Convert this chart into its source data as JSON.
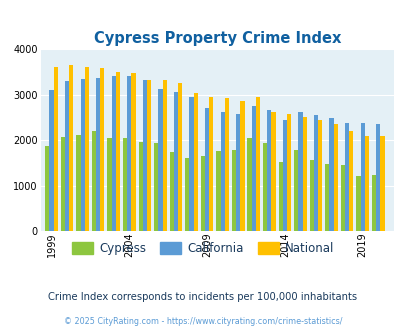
{
  "title": "Cypress Property Crime Index",
  "title_color": "#1060a0",
  "years": [
    1999,
    2000,
    2001,
    2002,
    2003,
    2004,
    2005,
    2006,
    2007,
    2008,
    2009,
    2010,
    2011,
    2012,
    2013,
    2014,
    2015,
    2016,
    2017,
    2018,
    2019,
    2020
  ],
  "cypress": [
    1880,
    2070,
    2120,
    2210,
    2050,
    2060,
    1970,
    1940,
    1750,
    1600,
    1660,
    1760,
    1790,
    2060,
    1940,
    1510,
    1790,
    1570,
    1480,
    1460,
    1220,
    1240
  ],
  "california": [
    3100,
    3300,
    3350,
    3380,
    3420,
    3420,
    3320,
    3130,
    3060,
    2950,
    2720,
    2630,
    2580,
    2760,
    2660,
    2450,
    2620,
    2550,
    2500,
    2390,
    2370,
    2360
  ],
  "national": [
    3610,
    3660,
    3610,
    3590,
    3510,
    3490,
    3330,
    3330,
    3260,
    3050,
    2960,
    2940,
    2870,
    2950,
    2620,
    2570,
    2510,
    2450,
    2360,
    2210,
    2090,
    2090
  ],
  "cypress_color": "#8dc63f",
  "california_color": "#5b9bd5",
  "national_color": "#ffc000",
  "bg_color": "#e4f0f6",
  "ylim": [
    0,
    4000
  ],
  "yticks": [
    0,
    1000,
    2000,
    3000,
    4000
  ],
  "xlabel_ticks": [
    1999,
    2004,
    2009,
    2014,
    2019
  ],
  "subtitle": "Crime Index corresponds to incidents per 100,000 inhabitants",
  "subtitle_color": "#1a3a5c",
  "footer": "© 2025 CityRating.com - https://www.cityrating.com/crime-statistics/",
  "footer_color": "#5b9bd5",
  "legend_labels": [
    "Cypress",
    "California",
    "National"
  ],
  "bar_width": 0.27
}
